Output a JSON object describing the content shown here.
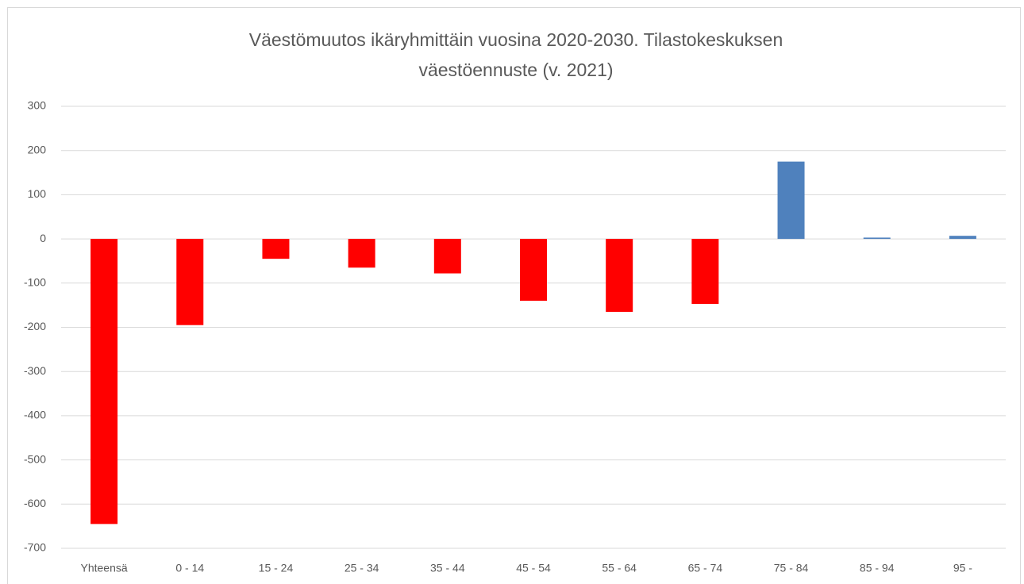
{
  "chart_data": {
    "type": "bar",
    "title": [
      "Väestömuutos ikäryhmittäin vuosina 2020-2030. Tilastokeskuksen",
      "väestöennuste (v. 2021)"
    ],
    "categories": [
      "Yhteensä",
      "0 - 14",
      "15 - 24",
      "25 - 34",
      "35 - 44",
      "45 - 54",
      "55 - 64",
      "65 - 74",
      "75 - 84",
      "85 - 94",
      "95 -"
    ],
    "values": [
      -645,
      -195,
      -45,
      -65,
      -78,
      -140,
      -165,
      -147,
      175,
      3,
      7
    ],
    "colors": [
      "#ff0000",
      "#ff0000",
      "#ff0000",
      "#ff0000",
      "#ff0000",
      "#ff0000",
      "#ff0000",
      "#ff0000",
      "#4f81bd",
      "#4f81bd",
      "#4f81bd"
    ],
    "ylim": [
      -700,
      300
    ],
    "yticks": [
      -700,
      -600,
      -500,
      -400,
      -300,
      -200,
      -100,
      0,
      100,
      200,
      300
    ],
    "grid": true
  }
}
